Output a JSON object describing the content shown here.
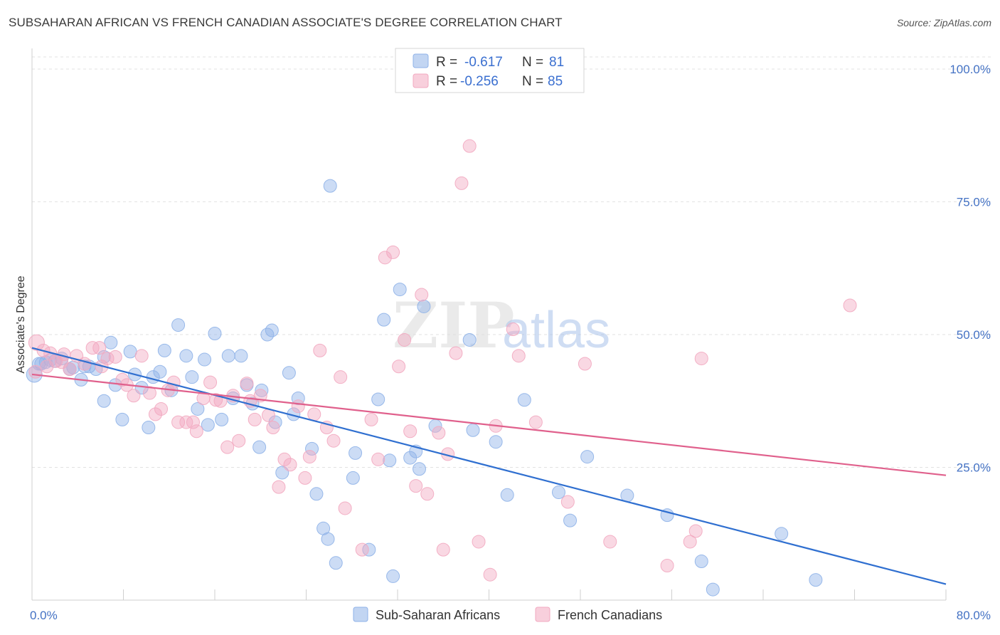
{
  "title": "SUBSAHARAN AFRICAN VS FRENCH CANADIAN ASSOCIATE'S DEGREE CORRELATION CHART",
  "source": "Source: ZipAtlas.com",
  "watermark": {
    "zip": "ZIP",
    "atlas": "atlas"
  },
  "legend": {
    "r_label": "R =",
    "n_label": "N =",
    "series": [
      {
        "r": "-0.617",
        "n": "81",
        "color": "#8fb2e8"
      },
      {
        "r": "-0.256",
        "n": "85",
        "color": "#f2a8c0"
      }
    ]
  },
  "chart_data": {
    "type": "scatter",
    "title": "SUBSAHARAN AFRICAN VS FRENCH CANADIAN ASSOCIATE'S DEGREE CORRELATION CHART",
    "xlabel": "",
    "ylabel": "Associate's Degree",
    "xlim": [
      0,
      80
    ],
    "ylim": [
      0,
      100
    ],
    "x_tick_labels": [
      "0.0%",
      "80.0%"
    ],
    "y_ticks": [
      25,
      50,
      75,
      100
    ],
    "y_tick_labels": [
      "25.0%",
      "50.0%",
      "75.0%",
      "100.0%"
    ],
    "series": [
      {
        "name": "Sub-Saharan Africans",
        "color": "#8fb2e8",
        "line_color": "#2f6fd0",
        "trend": {
          "x": [
            0,
            80
          ],
          "y": [
            47.5,
            3.0
          ]
        },
        "points": [
          [
            0.2,
            42.5
          ],
          [
            0.6,
            44.5
          ],
          [
            1.2,
            44.8
          ],
          [
            2.0,
            45.0
          ],
          [
            2.6,
            45.5
          ],
          [
            3.3,
            43.5
          ],
          [
            3.6,
            43.8
          ],
          [
            4.3,
            41.5
          ],
          [
            4.6,
            44.0
          ],
          [
            5.6,
            43.5
          ],
          [
            6.3,
            45.8
          ],
          [
            6.9,
            48.5
          ],
          [
            6.3,
            37.5
          ],
          [
            7.3,
            40.5
          ],
          [
            7.9,
            34.0
          ],
          [
            8.6,
            46.8
          ],
          [
            9.0,
            42.5
          ],
          [
            9.6,
            40.0
          ],
          [
            10.2,
            32.5
          ],
          [
            10.6,
            42.0
          ],
          [
            11.2,
            43.0
          ],
          [
            11.6,
            47.0
          ],
          [
            12.2,
            39.5
          ],
          [
            12.8,
            51.8
          ],
          [
            13.5,
            46.0
          ],
          [
            14.0,
            42.0
          ],
          [
            14.5,
            36.0
          ],
          [
            15.1,
            45.3
          ],
          [
            15.4,
            33.0
          ],
          [
            16.0,
            50.2
          ],
          [
            16.6,
            34.0
          ],
          [
            17.2,
            46.0
          ],
          [
            17.6,
            38.0
          ],
          [
            18.3,
            46.0
          ],
          [
            18.8,
            40.5
          ],
          [
            19.3,
            37.0
          ],
          [
            19.9,
            28.8
          ],
          [
            20.1,
            39.5
          ],
          [
            20.6,
            50.0
          ],
          [
            21.0,
            50.8
          ],
          [
            21.3,
            33.5
          ],
          [
            21.9,
            24.0
          ],
          [
            22.5,
            42.8
          ],
          [
            22.9,
            35.0
          ],
          [
            23.3,
            38.0
          ],
          [
            24.5,
            28.5
          ],
          [
            24.9,
            20.0
          ],
          [
            25.5,
            13.5
          ],
          [
            25.9,
            11.5
          ],
          [
            26.1,
            78.0
          ],
          [
            26.6,
            7.0
          ],
          [
            28.1,
            23.0
          ],
          [
            28.3,
            27.7
          ],
          [
            29.5,
            9.5
          ],
          [
            30.3,
            37.8
          ],
          [
            30.8,
            52.8
          ],
          [
            31.3,
            26.3
          ],
          [
            31.6,
            4.5
          ],
          [
            32.2,
            58.5
          ],
          [
            33.1,
            26.8
          ],
          [
            33.6,
            28.0
          ],
          [
            33.9,
            24.7
          ],
          [
            34.3,
            55.3
          ],
          [
            35.3,
            32.8
          ],
          [
            38.3,
            49.0
          ],
          [
            38.6,
            32.0
          ],
          [
            40.6,
            29.8
          ],
          [
            41.6,
            19.8
          ],
          [
            43.1,
            37.7
          ],
          [
            46.1,
            20.3
          ],
          [
            47.1,
            15.0
          ],
          [
            48.6,
            27.0
          ],
          [
            52.1,
            19.7
          ],
          [
            55.6,
            16.0
          ],
          [
            58.6,
            7.3
          ],
          [
            59.6,
            2.0
          ],
          [
            65.6,
            12.5
          ],
          [
            68.6,
            3.8
          ],
          [
            0.8,
            44.5
          ],
          [
            1.6,
            45.2
          ],
          [
            5.0,
            44.0
          ]
        ]
      },
      {
        "name": "French Canadians",
        "color": "#f2a8c0",
        "line_color": "#e0608c",
        "trend": {
          "x": [
            0,
            80
          ],
          "y": [
            42.5,
            23.5
          ]
        },
        "points": [
          [
            0.4,
            48.5
          ],
          [
            1.0,
            47.0
          ],
          [
            1.6,
            46.5
          ],
          [
            2.1,
            45.0
          ],
          [
            2.6,
            44.8
          ],
          [
            3.3,
            43.5
          ],
          [
            3.9,
            46.0
          ],
          [
            4.6,
            44.5
          ],
          [
            5.3,
            47.5
          ],
          [
            5.9,
            47.5
          ],
          [
            6.1,
            44.0
          ],
          [
            6.6,
            45.5
          ],
          [
            7.3,
            45.8
          ],
          [
            7.9,
            41.5
          ],
          [
            8.3,
            40.5
          ],
          [
            8.9,
            38.5
          ],
          [
            9.6,
            46.0
          ],
          [
            10.3,
            39.0
          ],
          [
            10.8,
            35.0
          ],
          [
            11.3,
            36.0
          ],
          [
            11.9,
            39.5
          ],
          [
            12.4,
            41.0
          ],
          [
            12.8,
            33.5
          ],
          [
            13.5,
            33.5
          ],
          [
            14.1,
            33.5
          ],
          [
            14.4,
            31.8
          ],
          [
            15.0,
            38.0
          ],
          [
            15.6,
            41.0
          ],
          [
            16.1,
            37.7
          ],
          [
            16.5,
            37.5
          ],
          [
            17.1,
            28.8
          ],
          [
            17.6,
            38.5
          ],
          [
            18.1,
            30.0
          ],
          [
            18.8,
            40.8
          ],
          [
            19.1,
            37.5
          ],
          [
            19.5,
            34.0
          ],
          [
            20.0,
            38.5
          ],
          [
            20.7,
            34.8
          ],
          [
            21.1,
            32.5
          ],
          [
            21.6,
            21.3
          ],
          [
            22.1,
            26.5
          ],
          [
            22.6,
            25.5
          ],
          [
            23.3,
            36.5
          ],
          [
            23.9,
            23.0
          ],
          [
            24.3,
            27.0
          ],
          [
            24.7,
            35.0
          ],
          [
            25.2,
            47.0
          ],
          [
            25.8,
            32.5
          ],
          [
            26.4,
            30.0
          ],
          [
            27.0,
            42.0
          ],
          [
            27.4,
            17.3
          ],
          [
            28.9,
            9.5
          ],
          [
            29.7,
            34.0
          ],
          [
            30.3,
            26.5
          ],
          [
            30.9,
            64.5
          ],
          [
            31.6,
            65.5
          ],
          [
            32.1,
            44.0
          ],
          [
            32.6,
            49.0
          ],
          [
            33.1,
            31.8
          ],
          [
            33.6,
            21.5
          ],
          [
            34.1,
            57.5
          ],
          [
            34.6,
            20.0
          ],
          [
            35.6,
            31.5
          ],
          [
            36.0,
            9.5
          ],
          [
            36.4,
            27.5
          ],
          [
            37.1,
            46.5
          ],
          [
            37.6,
            78.5
          ],
          [
            38.3,
            85.5
          ],
          [
            39.1,
            11.0
          ],
          [
            40.1,
            4.8
          ],
          [
            40.6,
            32.8
          ],
          [
            42.1,
            51.0
          ],
          [
            42.6,
            46.0
          ],
          [
            44.1,
            33.5
          ],
          [
            46.9,
            18.5
          ],
          [
            48.4,
            44.5
          ],
          [
            50.6,
            11.0
          ],
          [
            55.6,
            6.5
          ],
          [
            57.6,
            11.0
          ],
          [
            58.1,
            13.0
          ],
          [
            58.6,
            45.5
          ],
          [
            71.6,
            55.5
          ],
          [
            0.3,
            43.0
          ],
          [
            1.3,
            44.0
          ],
          [
            2.8,
            46.3
          ]
        ]
      }
    ],
    "legend_position": "top-center"
  }
}
